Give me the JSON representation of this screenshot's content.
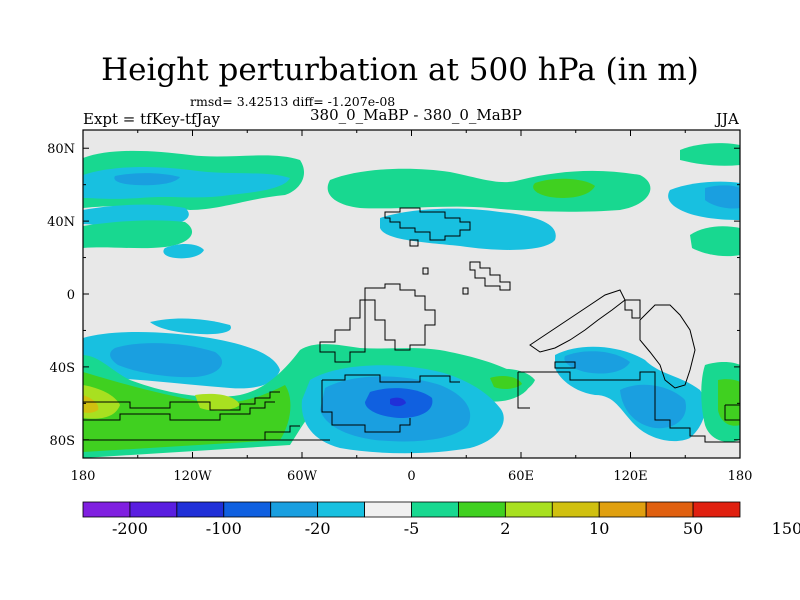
{
  "title": "Height perturbation at 500 hPa (in m)",
  "stats_line": "rmsd= 3.42513 diff= -1.207e-08",
  "experiment_label": "Expt = tfKey-tfJay",
  "period_label": "380_0_MaBP - 380_0_MaBP",
  "season": "JJA",
  "map": {
    "lon_ticks": [
      "180",
      "120W",
      "60W",
      "0",
      "60E",
      "120E",
      "180"
    ],
    "lat_ticks": [
      "80N",
      "40N",
      "0",
      "40S",
      "80S"
    ],
    "lon_range": [
      -180,
      180
    ],
    "lat_range": [
      -90,
      90
    ],
    "background_color": "#e8e8e8"
  },
  "colorbar": {
    "colors": [
      "#8020e0",
      "#5a1ee0",
      "#2030d8",
      "#1060e0",
      "#1a9fe0",
      "#18c0e0",
      "#f0f0f0",
      "#18d890",
      "#40d020",
      "#a8e020",
      "#d0c010",
      "#e0a010",
      "#e06010",
      "#e02010"
    ],
    "labels": [
      "-200",
      "-100",
      "-20",
      "-5",
      "2",
      "10",
      "50",
      "150"
    ]
  }
}
